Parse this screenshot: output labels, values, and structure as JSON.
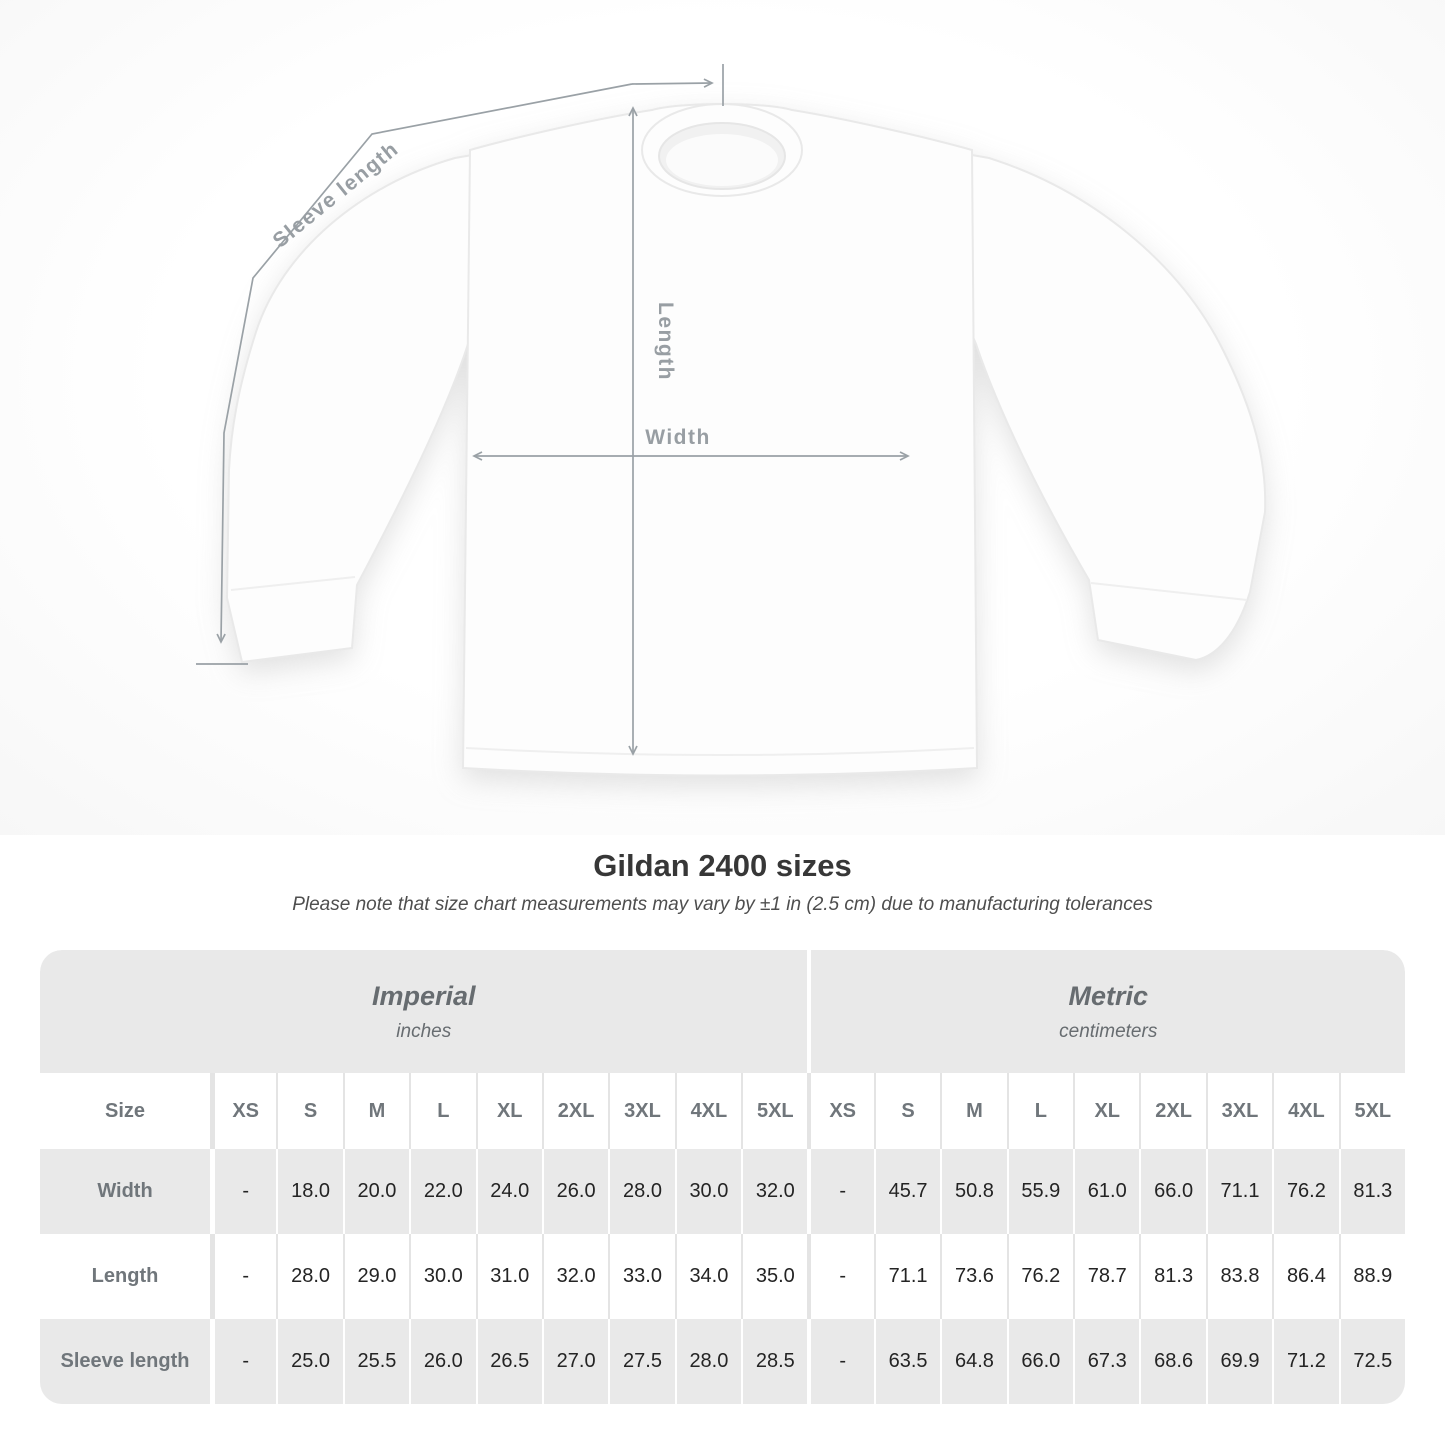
{
  "page": {
    "title": "Gildan 2400 sizes",
    "subtitle": "Please note that size chart measurements may vary by ±1 in (2.5 cm) due to manufacturing tolerances"
  },
  "diagram": {
    "sleeve_length_label": "Sleeve length",
    "length_label": "Length",
    "width_label": "Width"
  },
  "size_table": {
    "corner_label": "Size",
    "groups": [
      {
        "name": "Imperial",
        "unit": "inches"
      },
      {
        "name": "Metric",
        "unit": "centimeters"
      }
    ],
    "sizes": [
      "XS",
      "S",
      "M",
      "L",
      "XL",
      "2XL",
      "3XL",
      "4XL",
      "5XL"
    ],
    "rows": [
      {
        "label": "Width",
        "imperial": [
          "-",
          "18.0",
          "20.0",
          "22.0",
          "24.0",
          "26.0",
          "28.0",
          "30.0",
          "32.0"
        ],
        "metric": [
          "-",
          "45.7",
          "50.8",
          "55.9",
          "61.0",
          "66.0",
          "71.1",
          "76.2",
          "81.3"
        ]
      },
      {
        "label": "Length",
        "imperial": [
          "-",
          "28.0",
          "29.0",
          "30.0",
          "31.0",
          "32.0",
          "33.0",
          "34.0",
          "35.0"
        ],
        "metric": [
          "-",
          "71.1",
          "73.6",
          "76.2",
          "78.7",
          "81.3",
          "83.8",
          "86.4",
          "88.9"
        ]
      },
      {
        "label": "Sleeve length",
        "imperial": [
          "-",
          "25.0",
          "25.5",
          "26.0",
          "26.5",
          "27.0",
          "27.5",
          "28.0",
          "28.5"
        ],
        "metric": [
          "-",
          "63.5",
          "64.8",
          "66.0",
          "67.3",
          "68.6",
          "69.9",
          "71.2",
          "72.5"
        ]
      }
    ]
  },
  "colors": {
    "table_stripe_gray": "#e9e9e9",
    "measure_line_gray": "#9aa1a6",
    "header_text_gray": "#70767b",
    "value_text": "#242424"
  }
}
